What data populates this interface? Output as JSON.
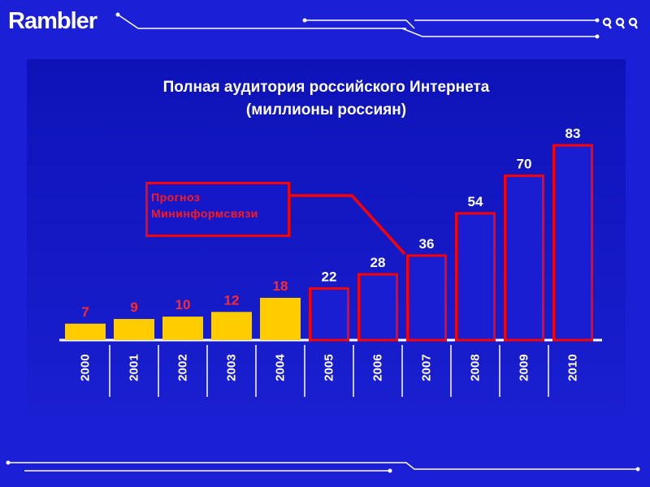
{
  "brand": {
    "logo_text": "Rambler"
  },
  "note": {
    "line1": "Прогноз",
    "line2": "Мининформсвязи"
  },
  "chart_data": {
    "type": "bar",
    "title": "Полная аудитория российского Интернета",
    "subtitle": "(миллионы россиян)",
    "categories": [
      "2000",
      "2001",
      "2002",
      "2003",
      "2004",
      "2005",
      "2006",
      "2007",
      "2008",
      "2009",
      "2010"
    ],
    "values": [
      7,
      9,
      10,
      12,
      18,
      22,
      28,
      36,
      54,
      70,
      83
    ],
    "series_styles": [
      "actual",
      "actual",
      "actual",
      "actual",
      "actual",
      "forecast",
      "forecast",
      "forecast",
      "forecast",
      "forecast",
      "forecast"
    ],
    "xlabel": "",
    "ylabel": "",
    "ylim": [
      0,
      83
    ],
    "grid": false,
    "legend": "none",
    "colors": {
      "actual_fill": "#ffcc00",
      "actual_label": "#ff2a2a",
      "forecast_stroke": "#ff0000",
      "forecast_fill": "#1a1ed2",
      "forecast_label": "#ffffff",
      "axis_labels": "#ffffff",
      "background": "#1b1fd6",
      "panel": "#1014c0"
    }
  }
}
